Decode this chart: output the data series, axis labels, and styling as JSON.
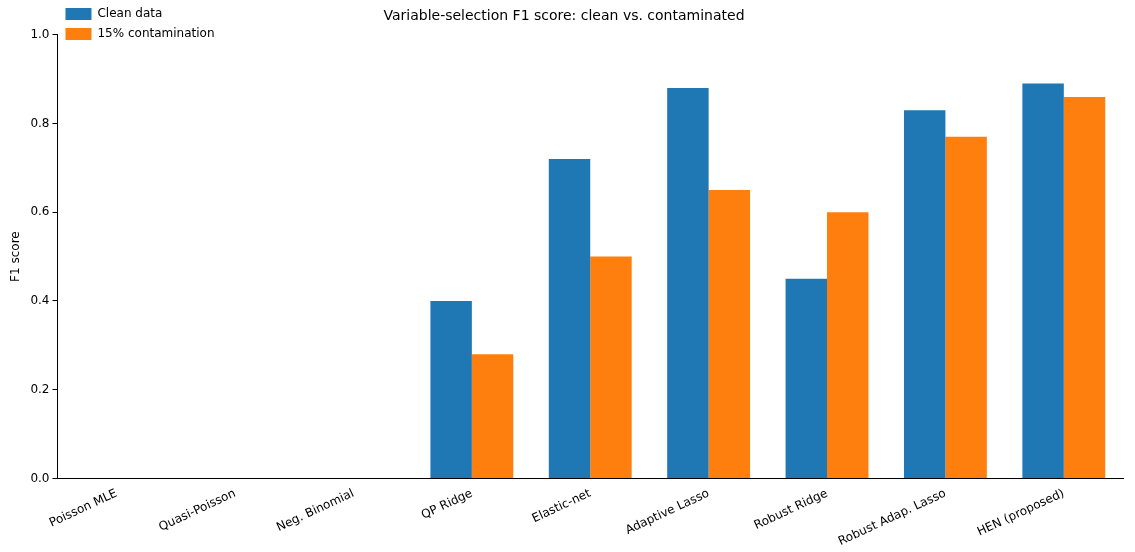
{
  "chart_data": {
    "type": "bar",
    "title": "Variable-selection F1 score: clean vs. contaminated",
    "ylabel": "F1 score",
    "categories": [
      "Poisson MLE",
      "Quasi-Poisson",
      "Neg. Binomial",
      "QP Ridge",
      "Elastic-net",
      "Adaptive Lasso",
      "Robust Ridge",
      "Robust Adap. Lasso",
      "HEN (proposed)"
    ],
    "series": [
      {
        "name": "Clean data",
        "color": "#1f77b4",
        "values": [
          0,
          0,
          0,
          0.4,
          0.72,
          0.88,
          0.45,
          0.83,
          0.89
        ]
      },
      {
        "name": "15% contamination",
        "color": "#ff7f0e",
        "values": [
          0,
          0,
          0,
          0.28,
          0.5,
          0.65,
          0.6,
          0.77,
          0.86
        ]
      }
    ],
    "ylim": [
      0,
      1
    ],
    "yticks": [
      {
        "value": 0,
        "label": "0.0"
      },
      0.2,
      0.4,
      0.6,
      0.8,
      {
        "value": 1,
        "label": "1.0"
      }
    ],
    "grid": false,
    "legend": "top left"
  }
}
